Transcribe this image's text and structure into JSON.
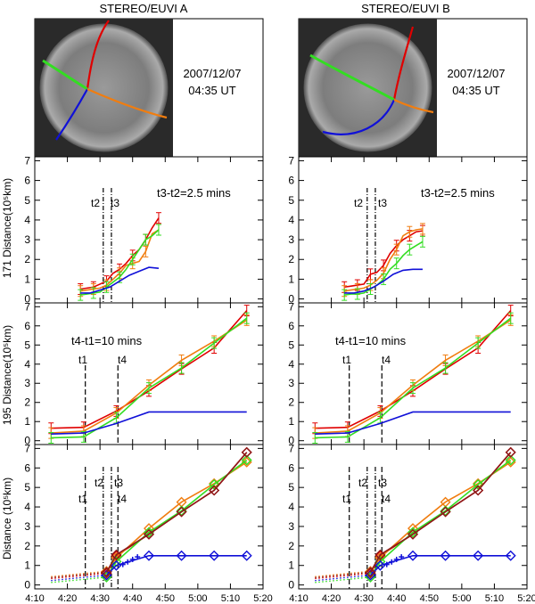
{
  "colors": {
    "red": "#e00000",
    "orange": "#f07d10",
    "green": "#33dd22",
    "blue": "#1010d8",
    "dark_red": "#8b1a1a"
  },
  "columns": [
    {
      "title": "STEREO/EUVI A",
      "date": "2007/12/07",
      "time": "04:35 UT"
    },
    {
      "title": "STEREO/EUVI B",
      "date": "2007/12/07",
      "time": "04:35 UT"
    }
  ],
  "ylabels": [
    "171 Distance(10⁵km)",
    "195 Distance(10⁵km)",
    "Distance (10⁵km)"
  ],
  "annotations": {
    "p171": "t3-t2=2.5 mins",
    "p195": "t4-t1=10 mins",
    "t1": "t1",
    "t2": "t2",
    "t3": "t3",
    "t4": "t4"
  },
  "chart_data": {
    "type": "line",
    "xlabel": "",
    "x_ticks": [
      "4:10",
      "4:20",
      "4:30",
      "4:40",
      "4:50",
      "5:00",
      "5:10",
      "5:20"
    ],
    "xlim": [
      "4:10",
      "5:20"
    ],
    "ylim": [
      -0.2,
      7.2
    ],
    "y_ticks": [
      0,
      1,
      2,
      3,
      4,
      5,
      6,
      7
    ],
    "event_times": {
      "t1": "4:25.5",
      "t2": "4:31",
      "t3": "4:33.5",
      "t4": "4:35.5"
    },
    "panels": [
      {
        "id": "A_171",
        "series": [
          {
            "color": "red",
            "x": [
              "4:24",
              "4:26",
              "4:28",
              "4:30",
              "4:32",
              "4:34",
              "4:36",
              "4:38",
              "4:40",
              "4:42",
              "4:44",
              "4:46",
              "4:48"
            ],
            "y": [
              0.5,
              0.55,
              0.6,
              0.75,
              0.9,
              1.3,
              1.5,
              1.8,
              2.2,
              2.5,
              3.0,
              3.6,
              4.1
            ]
          },
          {
            "color": "orange",
            "x": [
              "4:24",
              "4:26",
              "4:28",
              "4:30",
              "4:32",
              "4:34",
              "4:36",
              "4:38",
              "4:40",
              "4:42",
              "4:44",
              "4:46",
              "4:48"
            ],
            "y": [
              0.4,
              0.45,
              0.5,
              0.55,
              0.7,
              1.0,
              1.3,
              1.7,
              1.8,
              1.9,
              2.4,
              3.3,
              3.5
            ]
          },
          {
            "color": "green",
            "x": [
              "4:24",
              "4:26",
              "4:28",
              "4:30",
              "4:32",
              "4:34",
              "4:36",
              "4:38",
              "4:40",
              "4:42",
              "4:44",
              "4:46",
              "4:48"
            ],
            "y": [
              0.2,
              0.25,
              0.3,
              0.35,
              0.6,
              0.85,
              1.1,
              1.5,
              2.0,
              2.5,
              3.0,
              3.2,
              3.5
            ]
          },
          {
            "color": "blue",
            "x": [
              "4:24",
              "4:27",
              "4:30",
              "4:33",
              "4:36",
              "4:39",
              "4:42",
              "4:45",
              "4:48"
            ],
            "y": [
              0.3,
              0.3,
              0.45,
              0.6,
              0.9,
              1.2,
              1.4,
              1.6,
              1.55
            ]
          }
        ]
      },
      {
        "id": "B_171",
        "series": [
          {
            "color": "red",
            "x": [
              "4:24",
              "4:26",
              "4:28",
              "4:30",
              "4:32",
              "4:34",
              "4:36",
              "4:38",
              "4:40",
              "4:42",
              "4:44",
              "4:46",
              "4:48"
            ],
            "y": [
              0.6,
              0.65,
              0.7,
              0.75,
              1.25,
              1.35,
              1.7,
              2.3,
              2.7,
              3.0,
              3.2,
              3.4,
              3.45
            ]
          },
          {
            "color": "orange",
            "x": [
              "4:24",
              "4:26",
              "4:28",
              "4:30",
              "4:32",
              "4:34",
              "4:36",
              "4:38",
              "4:40",
              "4:42",
              "4:44",
              "4:46",
              "4:48"
            ],
            "y": [
              0.4,
              0.45,
              0.5,
              0.55,
              0.7,
              0.95,
              1.3,
              2.0,
              2.5,
              3.2,
              3.4,
              3.5,
              3.55
            ]
          },
          {
            "color": "green",
            "x": [
              "4:24",
              "4:26",
              "4:28",
              "4:30",
              "4:32",
              "4:34",
              "4:36",
              "4:38",
              "4:40",
              "4:42",
              "4:44",
              "4:46",
              "4:48"
            ],
            "y": [
              0.2,
              0.25,
              0.25,
              0.3,
              0.5,
              0.7,
              1.0,
              1.5,
              1.8,
              2.2,
              2.5,
              2.7,
              2.9
            ]
          },
          {
            "color": "blue",
            "x": [
              "4:24",
              "4:27",
              "4:30",
              "4:33",
              "4:36",
              "4:39",
              "4:42",
              "4:45",
              "4:48"
            ],
            "y": [
              0.3,
              0.3,
              0.4,
              0.6,
              0.9,
              1.25,
              1.45,
              1.5,
              1.5
            ]
          }
        ]
      },
      {
        "id": "A_195",
        "series": [
          {
            "color": "red",
            "x": [
              "4:15",
              "4:25",
              "4:35",
              "4:45",
              "4:55",
              "5:05",
              "5:15"
            ],
            "y": [
              0.65,
              0.7,
              1.55,
              2.6,
              3.75,
              4.85,
              6.8
            ]
          },
          {
            "color": "orange",
            "x": [
              "4:15",
              "4:25",
              "4:35",
              "4:45",
              "4:55",
              "5:05",
              "5:15"
            ],
            "y": [
              0.4,
              0.5,
              1.45,
              2.9,
              4.2,
              5.2,
              6.3
            ]
          },
          {
            "color": "green",
            "x": [
              "4:15",
              "4:25",
              "4:35",
              "4:45",
              "4:55",
              "5:05",
              "5:15"
            ],
            "y": [
              0.15,
              0.2,
              1.2,
              2.75,
              3.8,
              5.1,
              6.4
            ]
          },
          {
            "color": "blue",
            "x": [
              "4:15",
              "4:25",
              "4:35",
              "4:45",
              "4:55",
              "5:05",
              "5:15"
            ],
            "y": [
              0.35,
              0.4,
              0.9,
              1.5,
              1.5,
              1.5,
              1.5
            ]
          }
        ]
      },
      {
        "id": "B_195",
        "series": [
          {
            "color": "red",
            "x": [
              "4:15",
              "4:25",
              "4:35",
              "4:45",
              "4:55",
              "5:05",
              "5:15"
            ],
            "y": [
              0.65,
              0.7,
              1.55,
              2.6,
              3.75,
              4.85,
              6.8
            ]
          },
          {
            "color": "orange",
            "x": [
              "4:15",
              "4:25",
              "4:35",
              "4:45",
              "4:55",
              "5:05",
              "5:15"
            ],
            "y": [
              0.4,
              0.5,
              1.45,
              2.9,
              4.2,
              5.2,
              6.3
            ]
          },
          {
            "color": "green",
            "x": [
              "4:15",
              "4:25",
              "4:35",
              "4:45",
              "4:55",
              "5:05",
              "5:15"
            ],
            "y": [
              0.15,
              0.2,
              1.2,
              2.75,
              3.8,
              5.1,
              6.4
            ]
          },
          {
            "color": "blue",
            "x": [
              "4:15",
              "4:25",
              "4:35",
              "4:45",
              "4:55",
              "5:05",
              "5:15"
            ],
            "y": [
              0.35,
              0.4,
              0.9,
              1.5,
              1.5,
              1.5,
              1.5
            ]
          }
        ]
      },
      {
        "id": "A_combined",
        "series": [
          {
            "color": "red",
            "x": [
              "4:32",
              "4:35",
              "4:45",
              "4:55",
              "5:05",
              "5:15"
            ],
            "y": [
              0.6,
              1.5,
              2.6,
              3.75,
              4.85,
              6.8
            ]
          },
          {
            "color": "orange",
            "x": [
              "4:32",
              "4:35",
              "4:45",
              "4:55",
              "5:05",
              "5:15"
            ],
            "y": [
              0.7,
              1.4,
              2.9,
              4.25,
              5.2,
              6.3
            ]
          },
          {
            "color": "green",
            "x": [
              "4:32",
              "4:35",
              "4:45",
              "4:55",
              "5:05",
              "5:15"
            ],
            "y": [
              0.4,
              1.2,
              2.7,
              3.8,
              5.15,
              6.4
            ]
          },
          {
            "color": "blue",
            "x": [
              "4:32",
              "4:35",
              "4:45",
              "4:55",
              "5:05",
              "5:15"
            ],
            "y": [
              0.5,
              1.0,
              1.5,
              1.5,
              1.5,
              1.5
            ]
          },
          {
            "color": "dark_red",
            "x": [
              "4:32",
              "4:35",
              "4:45",
              "4:55",
              "5:05",
              "5:15"
            ],
            "y": [
              0.65,
              1.55,
              2.6,
              3.75,
              4.85,
              6.8
            ]
          }
        ]
      },
      {
        "id": "B_combined",
        "series": [
          {
            "color": "red",
            "x": [
              "4:32",
              "4:35",
              "4:45",
              "4:55",
              "5:05",
              "5:15"
            ],
            "y": [
              0.6,
              1.5,
              2.6,
              3.75,
              4.85,
              6.8
            ]
          },
          {
            "color": "orange",
            "x": [
              "4:32",
              "4:35",
              "4:45",
              "4:55",
              "5:05",
              "5:15"
            ],
            "y": [
              0.7,
              1.4,
              2.9,
              4.25,
              5.2,
              6.3
            ]
          },
          {
            "color": "green",
            "x": [
              "4:32",
              "4:35",
              "4:45",
              "4:55",
              "5:05",
              "5:15"
            ],
            "y": [
              0.4,
              1.2,
              2.7,
              3.8,
              5.15,
              6.4
            ]
          },
          {
            "color": "blue",
            "x": [
              "4:32",
              "4:35",
              "4:45",
              "4:55",
              "5:05",
              "5:15"
            ],
            "y": [
              0.5,
              1.0,
              1.5,
              1.5,
              1.5,
              1.5
            ]
          },
          {
            "color": "dark_red",
            "x": [
              "4:32",
              "4:35",
              "4:45",
              "4:55",
              "5:05",
              "5:15"
            ],
            "y": [
              0.65,
              1.55,
              2.6,
              3.75,
              4.85,
              6.8
            ]
          }
        ]
      }
    ]
  }
}
